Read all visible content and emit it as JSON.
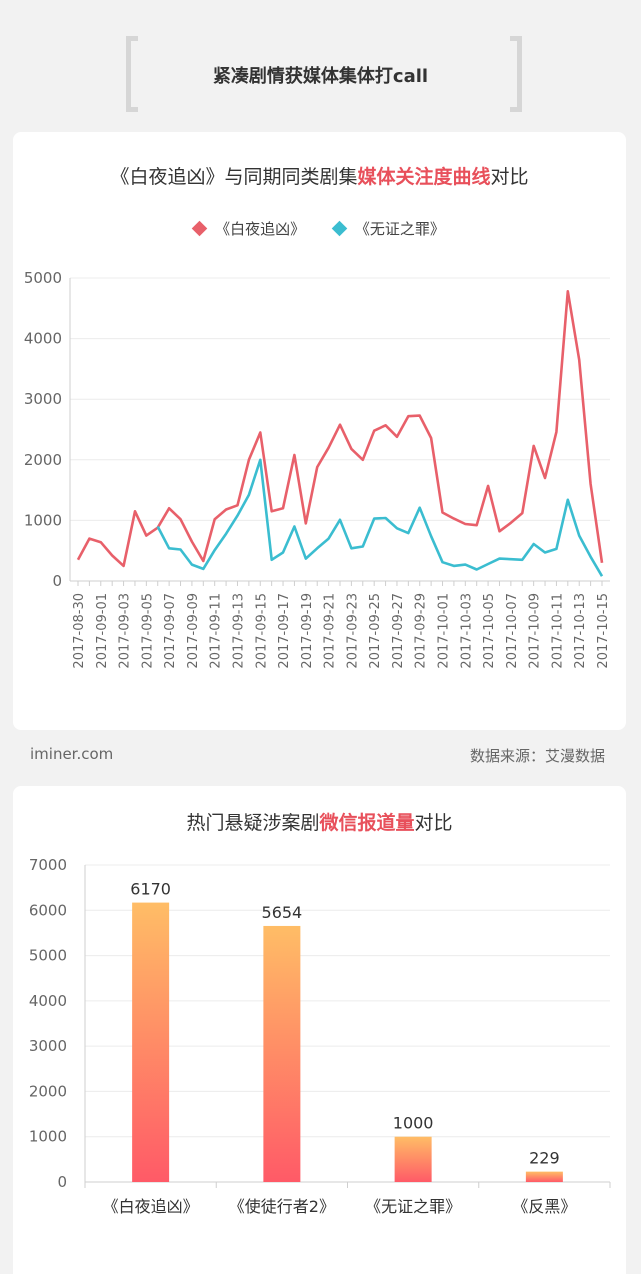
{
  "header": {
    "title": "紧凑剧情获媒体集体打call"
  },
  "colors": {
    "primary": "#e8606a",
    "secondary": "#3bbdd0",
    "bar_top": "#ffbd66",
    "bar_bottom": "#ff5a67"
  },
  "chart1": {
    "title_pre": "《白夜追凶》与同期同类剧集",
    "title_hl": "媒体关注度曲线",
    "title_post": "对比",
    "footer_left": "iminer.com",
    "footer_right": "数据来源：艾漫数据"
  },
  "chart2": {
    "title_pre": "热门悬疑涉案剧",
    "title_hl": "微信报道量",
    "title_post": "对比"
  },
  "chart_data": [
    {
      "type": "line",
      "title": "《白夜追凶》与同期同类剧集媒体关注度曲线对比",
      "x": [
        "2017-08-30",
        "2017-08-31",
        "2017-09-01",
        "2017-09-02",
        "2017-09-03",
        "2017-09-04",
        "2017-09-05",
        "2017-09-06",
        "2017-09-07",
        "2017-09-08",
        "2017-09-09",
        "2017-09-10",
        "2017-09-11",
        "2017-09-12",
        "2017-09-13",
        "2017-09-14",
        "2017-09-15",
        "2017-09-16",
        "2017-09-17",
        "2017-09-18",
        "2017-09-19",
        "2017-09-20",
        "2017-09-21",
        "2017-09-22",
        "2017-09-23",
        "2017-09-24",
        "2017-09-25",
        "2017-09-26",
        "2017-09-27",
        "2017-09-28",
        "2017-09-29",
        "2017-09-30",
        "2017-10-01",
        "2017-10-02",
        "2017-10-03",
        "2017-10-04",
        "2017-10-05",
        "2017-10-06",
        "2017-10-07",
        "2017-10-08",
        "2017-10-09",
        "2017-10-10",
        "2017-10-11",
        "2017-10-12",
        "2017-10-13",
        "2017-10-14",
        "2017-10-15"
      ],
      "x_tick_labels": [
        "2017-08-30",
        "2017-09-01",
        "2017-09-03",
        "2017-09-05",
        "2017-09-07",
        "2017-09-09",
        "2017-09-11",
        "2017-09-13",
        "2017-09-15",
        "2017-09-17",
        "2017-09-19",
        "2017-09-21",
        "2017-09-23",
        "2017-09-25",
        "2017-09-27",
        "2017-09-29",
        "2017-10-01",
        "2017-10-03",
        "2017-10-05",
        "2017-10-07",
        "2017-10-09",
        "2017-10-11",
        "2017-10-13",
        "2017-10-15"
      ],
      "series": [
        {
          "name": "《白夜追凶》",
          "values": [
            350,
            700,
            640,
            420,
            250,
            1150,
            750,
            880,
            1200,
            1020,
            650,
            330,
            1020,
            1180,
            1250,
            2000,
            2450,
            1150,
            1200,
            2080,
            950,
            1880,
            2200,
            2580,
            2180,
            2000,
            2480,
            2570,
            2380,
            2720,
            2730,
            2360,
            1130,
            1030,
            940,
            920,
            1570,
            820,
            960,
            1120,
            2230,
            1700,
            2460,
            4780,
            3650,
            1600,
            300
          ]
        },
        {
          "name": "《无证之罪》",
          "values": [
            null,
            null,
            null,
            null,
            null,
            null,
            null,
            900,
            540,
            520,
            270,
            200,
            510,
            780,
            1080,
            1420,
            2000,
            350,
            470,
            900,
            370,
            540,
            700,
            1010,
            540,
            570,
            1030,
            1040,
            870,
            790,
            1210,
            740,
            310,
            250,
            270,
            190,
            280,
            370,
            360,
            350,
            610,
            470,
            530,
            1340,
            750,
            400,
            80
          ]
        }
      ],
      "ylim": [
        0,
        5000
      ],
      "y_ticks": [
        0,
        1000,
        2000,
        3000,
        4000,
        5000
      ],
      "grid": true,
      "legend": "top"
    },
    {
      "type": "bar",
      "title": "热门悬疑涉案剧微信报道量对比",
      "categories": [
        "《白夜追凶》",
        "《使徒行者2》",
        "《无证之罪》",
        "《反黑》"
      ],
      "values": [
        6170,
        5654,
        1000,
        229
      ],
      "ylim": [
        0,
        7000
      ],
      "y_ticks": [
        0,
        1000,
        2000,
        3000,
        4000,
        5000,
        6000,
        7000
      ],
      "grid": true
    }
  ]
}
